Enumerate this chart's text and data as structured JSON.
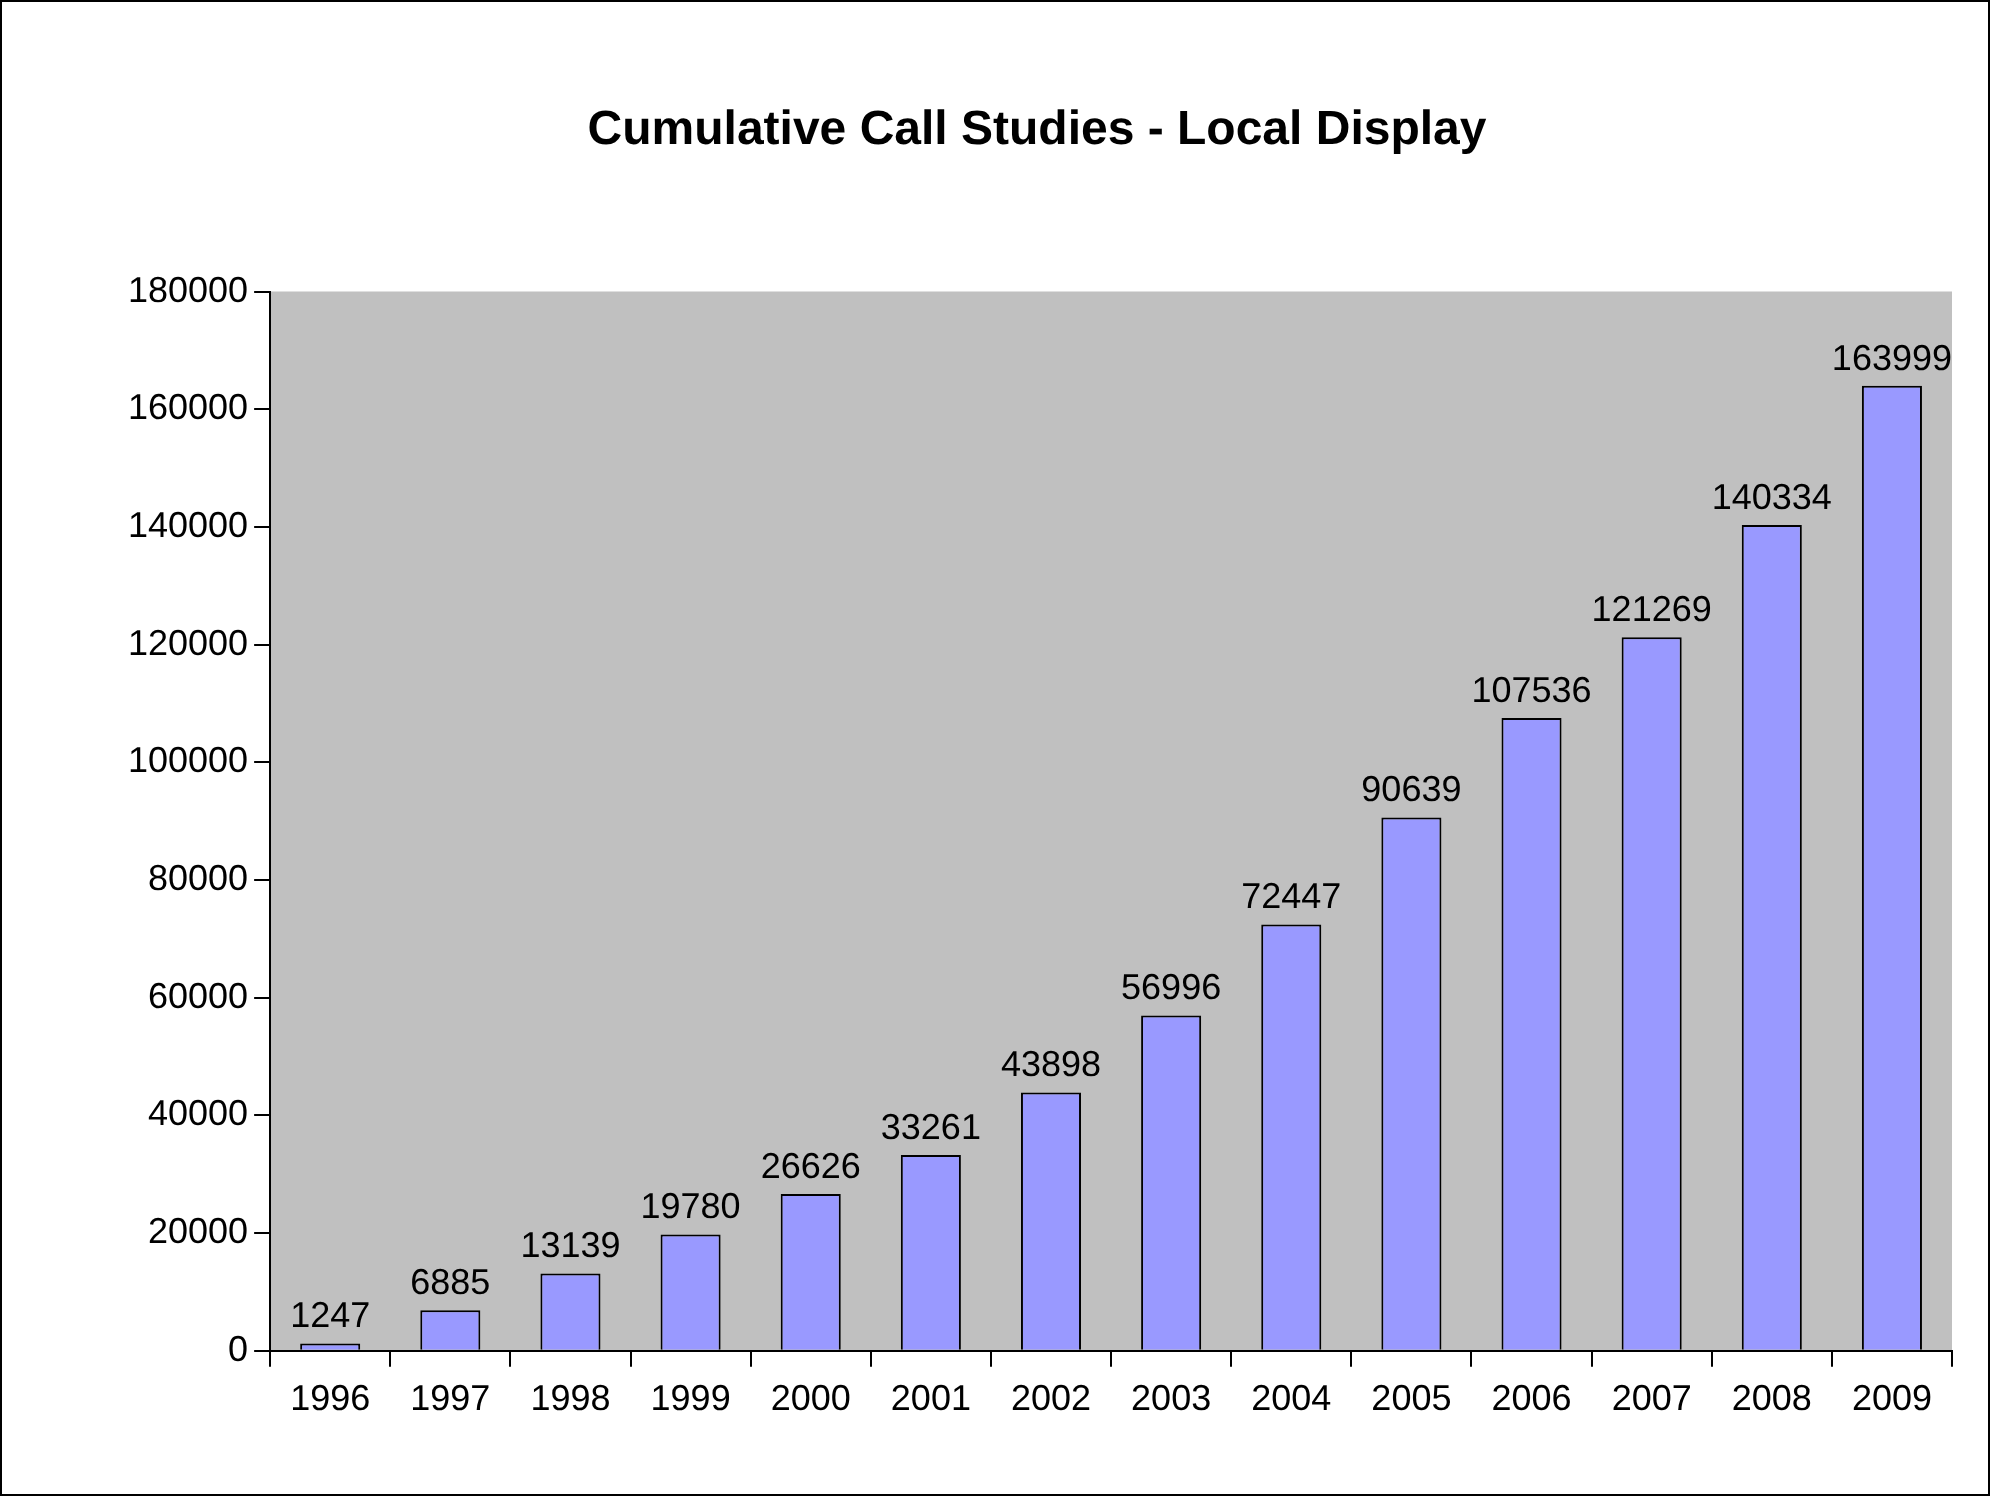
{
  "chart_data": {
    "type": "bar",
    "title": "Cumulative Call Studies - Local Display",
    "categories": [
      "1996",
      "1997",
      "1998",
      "1999",
      "2000",
      "2001",
      "2002",
      "2003",
      "2004",
      "2005",
      "2006",
      "2007",
      "2008",
      "2009"
    ],
    "values": [
      1247,
      6885,
      13139,
      19780,
      26626,
      33261,
      43898,
      56996,
      72447,
      90639,
      107536,
      121269,
      140334,
      163999
    ],
    "color": "#9999ff",
    "ylim": [
      0,
      180000
    ],
    "yticks": [
      0,
      20000,
      40000,
      60000,
      80000,
      100000,
      120000,
      140000,
      160000,
      180000
    ],
    "grid": false,
    "legend": false,
    "data_labels": true
  }
}
